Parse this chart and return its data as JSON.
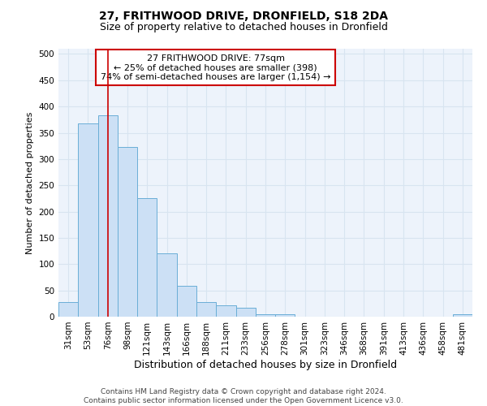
{
  "title1": "27, FRITHWOOD DRIVE, DRONFIELD, S18 2DA",
  "title2": "Size of property relative to detached houses in Dronfield",
  "xlabel": "Distribution of detached houses by size in Dronfield",
  "ylabel": "Number of detached properties",
  "categories": [
    "31sqm",
    "53sqm",
    "76sqm",
    "98sqm",
    "121sqm",
    "143sqm",
    "166sqm",
    "188sqm",
    "211sqm",
    "233sqm",
    "256sqm",
    "278sqm",
    "301sqm",
    "323sqm",
    "346sqm",
    "368sqm",
    "391sqm",
    "413sqm",
    "436sqm",
    "458sqm",
    "481sqm"
  ],
  "values": [
    28,
    368,
    383,
    323,
    226,
    121,
    59,
    28,
    22,
    17,
    5,
    5,
    0,
    0,
    0,
    0,
    0,
    0,
    0,
    0,
    5
  ],
  "bar_color": "#cce0f5",
  "bar_edge_color": "#6aaed6",
  "background_color": "#edf3fb",
  "grid_color": "#d8e4f0",
  "annotation_box_text": "27 FRITHWOOD DRIVE: 77sqm\n← 25% of detached houses are smaller (398)\n74% of semi-detached houses are larger (1,154) →",
  "annotation_box_color": "#ffffff",
  "annotation_box_edge_color": "#cc0000",
  "vline_color": "#cc0000",
  "vline_index": 2,
  "ylim": [
    0,
    510
  ],
  "yticks": [
    0,
    50,
    100,
    150,
    200,
    250,
    300,
    350,
    400,
    450,
    500
  ],
  "footer": "Contains HM Land Registry data © Crown copyright and database right 2024.\nContains public sector information licensed under the Open Government Licence v3.0.",
  "title1_fontsize": 10,
  "title2_fontsize": 9,
  "xlabel_fontsize": 9,
  "ylabel_fontsize": 8,
  "tick_fontsize": 7.5,
  "annot_fontsize": 8,
  "footer_fontsize": 6.5
}
